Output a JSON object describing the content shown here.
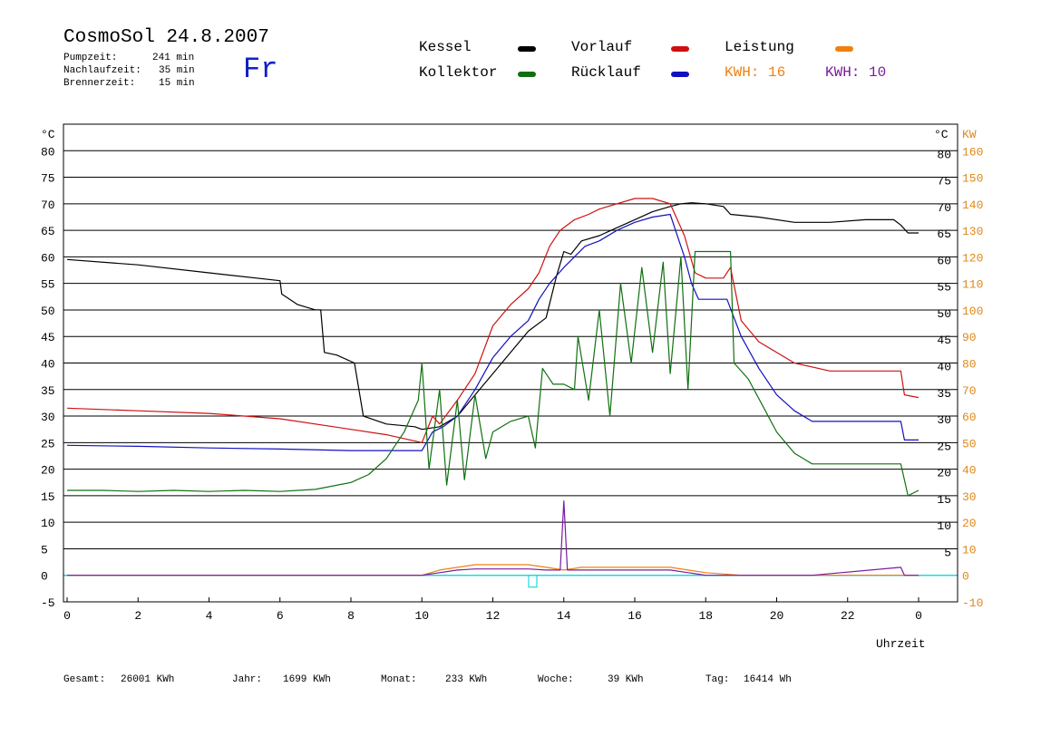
{
  "header": {
    "title": "CosmoSol 24.8.2007",
    "pumpzeit_label": "Pumpzeit:",
    "pumpzeit_value": "241 min",
    "nachlaufzeit_label": "Nachlaufzeit:",
    "nachlaufzeit_value": "35 min",
    "brennerzeit_label": "Brennerzeit:",
    "brennerzeit_value": "15 min",
    "day": "Fr"
  },
  "legend": {
    "kessel": "Kessel",
    "kollektor": "Kollektor",
    "vorlauf": "Vorlauf",
    "ruecklauf": "Rücklauf",
    "leistung": "Leistung",
    "kwh1": "KWH: 16",
    "kwh2": "KWH: 10"
  },
  "footer": {
    "gesamt_label": "Gesamt:",
    "gesamt_value": "26001 KWh",
    "jahr_label": "Jahr:",
    "jahr_value": "1699 KWh",
    "monat_label": "Monat:",
    "monat_value": "233 KWh",
    "woche_label": "Woche:",
    "woche_value": "39 KWh",
    "tag_label": "Tag:",
    "tag_value": "16414 Wh"
  },
  "colors": {
    "kessel": "#000000",
    "kollektor": "#107010",
    "vorlauf": "#d01010",
    "ruecklauf": "#1010c0",
    "leistung": "#f08010",
    "kwh2": "#7a1aa0",
    "baseline": "#20d8d8",
    "axis_right_kw": "#e08818"
  },
  "chart_data": {
    "type": "line",
    "xlabel": "Uhrzeit",
    "x_range": [
      0,
      24
    ],
    "x_ticks": [
      "0",
      "2",
      "4",
      "6",
      "8",
      "10",
      "12",
      "14",
      "16",
      "18",
      "20",
      "22",
      "0"
    ],
    "y_left_unit": "°C",
    "y_right_unit": "°C",
    "y_right2_unit": "KW",
    "ylim": [
      -5,
      85
    ],
    "y_left_ticks": [
      "80",
      "75",
      "70",
      "65",
      "60",
      "55",
      "50",
      "45",
      "40",
      "35",
      "30",
      "25",
      "20",
      "15",
      "10",
      "5",
      "0",
      "-5"
    ],
    "y_right_ticks": [
      "80",
      "75",
      "70",
      "65",
      "60",
      "55",
      "50",
      "45",
      "40",
      "35",
      "30",
      "25",
      "20",
      "15",
      "10",
      "5"
    ],
    "y2_ticks": [
      "160",
      "150",
      "140",
      "130",
      "120",
      "110",
      "100",
      "90",
      "80",
      "70",
      "60",
      "50",
      "40",
      "30",
      "20",
      "10",
      "0",
      "-10"
    ],
    "grid": true,
    "series": [
      {
        "name": "Kessel",
        "color_key": "kessel",
        "points": [
          [
            0,
            59.5
          ],
          [
            2,
            58.5
          ],
          [
            4,
            57
          ],
          [
            6,
            55.5
          ],
          [
            6.05,
            53
          ],
          [
            6.5,
            51
          ],
          [
            7,
            50
          ],
          [
            7.15,
            50
          ],
          [
            7.25,
            42
          ],
          [
            7.6,
            41.5
          ],
          [
            8.1,
            40
          ],
          [
            8.35,
            30
          ],
          [
            9,
            28.5
          ],
          [
            9.8,
            28
          ],
          [
            10,
            27.5
          ],
          [
            10.5,
            28
          ],
          [
            11,
            30
          ],
          [
            11.5,
            34
          ],
          [
            12,
            38
          ],
          [
            12.5,
            42
          ],
          [
            13,
            46
          ],
          [
            13.5,
            48.5
          ],
          [
            13.8,
            56.5
          ],
          [
            14,
            61
          ],
          [
            14.2,
            60.5
          ],
          [
            14.5,
            63
          ],
          [
            15,
            64
          ],
          [
            15.5,
            65.5
          ],
          [
            16,
            67
          ],
          [
            16.5,
            68.5
          ],
          [
            17,
            69.5
          ],
          [
            17.3,
            70
          ],
          [
            17.6,
            70.2
          ],
          [
            18,
            70
          ],
          [
            18.5,
            69.5
          ],
          [
            18.7,
            68
          ],
          [
            19.5,
            67.5
          ],
          [
            20.5,
            66.5
          ],
          [
            21.5,
            66.5
          ],
          [
            22.5,
            67
          ],
          [
            23.3,
            67
          ],
          [
            23.5,
            66
          ],
          [
            23.7,
            64.5
          ],
          [
            24,
            64.5
          ]
        ]
      },
      {
        "name": "Vorlauf",
        "color_key": "vorlauf",
        "points": [
          [
            0,
            31.5
          ],
          [
            2,
            31
          ],
          [
            4,
            30.5
          ],
          [
            6,
            29.5
          ],
          [
            8,
            27.5
          ],
          [
            9,
            26.5
          ],
          [
            10,
            25
          ],
          [
            10.3,
            30
          ],
          [
            10.5,
            28.5
          ],
          [
            11,
            33
          ],
          [
            11.5,
            38
          ],
          [
            12,
            47
          ],
          [
            12.5,
            51
          ],
          [
            13,
            54
          ],
          [
            13.3,
            57
          ],
          [
            13.6,
            62
          ],
          [
            13.9,
            65
          ],
          [
            14.3,
            67
          ],
          [
            14.7,
            68
          ],
          [
            15,
            69
          ],
          [
            15.5,
            70
          ],
          [
            16,
            71
          ],
          [
            16.5,
            71
          ],
          [
            17,
            70
          ],
          [
            17.4,
            64
          ],
          [
            17.7,
            57
          ],
          [
            18,
            56
          ],
          [
            18.5,
            56
          ],
          [
            18.7,
            58
          ],
          [
            19,
            48
          ],
          [
            19.5,
            44
          ],
          [
            20.5,
            40
          ],
          [
            21.5,
            38.5
          ],
          [
            23.5,
            38.5
          ],
          [
            23.6,
            34
          ],
          [
            24,
            33.5
          ]
        ]
      },
      {
        "name": "Rücklauf",
        "color_key": "ruecklauf",
        "points": [
          [
            0,
            24.5
          ],
          [
            2,
            24.3
          ],
          [
            4,
            24
          ],
          [
            6,
            23.8
          ],
          [
            8,
            23.5
          ],
          [
            10,
            23.5
          ],
          [
            10.3,
            27
          ],
          [
            10.6,
            28
          ],
          [
            11,
            30
          ],
          [
            11.5,
            35
          ],
          [
            12,
            41
          ],
          [
            12.5,
            45
          ],
          [
            13,
            48
          ],
          [
            13.3,
            52
          ],
          [
            13.6,
            55
          ],
          [
            14,
            58
          ],
          [
            14.3,
            60
          ],
          [
            14.6,
            62
          ],
          [
            15,
            63
          ],
          [
            15.5,
            65
          ],
          [
            16,
            66.5
          ],
          [
            16.5,
            67.5
          ],
          [
            17,
            68
          ],
          [
            17.4,
            60
          ],
          [
            17.6,
            55
          ],
          [
            17.8,
            52
          ],
          [
            18.6,
            52
          ],
          [
            19,
            45
          ],
          [
            19.5,
            39
          ],
          [
            20,
            34
          ],
          [
            20.5,
            31
          ],
          [
            21,
            29
          ],
          [
            23.5,
            29
          ],
          [
            23.6,
            25.5
          ],
          [
            24,
            25.5
          ]
        ]
      },
      {
        "name": "Kollektor",
        "color_key": "kollektor",
        "points": [
          [
            0,
            16
          ],
          [
            1,
            16
          ],
          [
            2,
            15.8
          ],
          [
            3,
            16
          ],
          [
            4,
            15.8
          ],
          [
            5,
            16
          ],
          [
            6,
            15.8
          ],
          [
            7,
            16.2
          ],
          [
            8,
            17.5
          ],
          [
            8.5,
            19
          ],
          [
            9,
            22
          ],
          [
            9.5,
            27
          ],
          [
            9.9,
            33
          ],
          [
            10,
            40
          ],
          [
            10.2,
            20
          ],
          [
            10.5,
            35
          ],
          [
            10.7,
            17
          ],
          [
            11,
            33
          ],
          [
            11.2,
            18
          ],
          [
            11.5,
            34
          ],
          [
            11.8,
            22
          ],
          [
            12,
            27
          ],
          [
            12.5,
            29
          ],
          [
            13,
            30
          ],
          [
            13.2,
            24
          ],
          [
            13.4,
            39
          ],
          [
            13.7,
            36
          ],
          [
            14,
            36
          ],
          [
            14.3,
            35
          ],
          [
            14.4,
            45
          ],
          [
            14.7,
            33
          ],
          [
            15,
            50
          ],
          [
            15.3,
            30
          ],
          [
            15.6,
            55
          ],
          [
            15.9,
            40
          ],
          [
            16.2,
            58
          ],
          [
            16.5,
            42
          ],
          [
            16.8,
            59
          ],
          [
            17,
            38
          ],
          [
            17.3,
            60
          ],
          [
            17.5,
            35
          ],
          [
            17.7,
            61
          ],
          [
            18,
            61
          ],
          [
            18.5,
            61
          ],
          [
            18.7,
            61
          ],
          [
            18.8,
            40
          ],
          [
            19.2,
            37
          ],
          [
            19.6,
            32
          ],
          [
            20,
            27
          ],
          [
            20.5,
            23
          ],
          [
            21,
            21
          ],
          [
            23.5,
            21
          ],
          [
            23.7,
            15
          ],
          [
            24,
            16
          ]
        ]
      },
      {
        "name": "Leistung",
        "color_key": "leistung",
        "points": [
          [
            0,
            0
          ],
          [
            10,
            0
          ],
          [
            10.5,
            1
          ],
          [
            11,
            1.5
          ],
          [
            11.5,
            2
          ],
          [
            12,
            2
          ],
          [
            12.5,
            2
          ],
          [
            13,
            2
          ],
          [
            13.5,
            1.5
          ],
          [
            14,
            1
          ],
          [
            14.5,
            1.5
          ],
          [
            15,
            1.5
          ],
          [
            15.5,
            1.5
          ],
          [
            16,
            1.5
          ],
          [
            16.5,
            1.5
          ],
          [
            17,
            1.5
          ],
          [
            17.5,
            1
          ],
          [
            18,
            0.5
          ],
          [
            19,
            0
          ],
          [
            24,
            0
          ]
        ]
      },
      {
        "name": "KWH: 10",
        "color_key": "kwh2",
        "points": [
          [
            0,
            0
          ],
          [
            10,
            0
          ],
          [
            10.5,
            0.5
          ],
          [
            11,
            1
          ],
          [
            11.5,
            1.2
          ],
          [
            12,
            1.2
          ],
          [
            12.5,
            1.2
          ],
          [
            13,
            1.2
          ],
          [
            13.5,
            1
          ],
          [
            13.9,
            1
          ],
          [
            14,
            14
          ],
          [
            14.1,
            1
          ],
          [
            14.5,
            1
          ],
          [
            15,
            1
          ],
          [
            15.5,
            1
          ],
          [
            16,
            1
          ],
          [
            16.5,
            1
          ],
          [
            17,
            1
          ],
          [
            17.5,
            0.5
          ],
          [
            18,
            0
          ],
          [
            21,
            0
          ],
          [
            23.5,
            1.5
          ],
          [
            23.6,
            0
          ],
          [
            24,
            0
          ]
        ]
      }
    ]
  }
}
